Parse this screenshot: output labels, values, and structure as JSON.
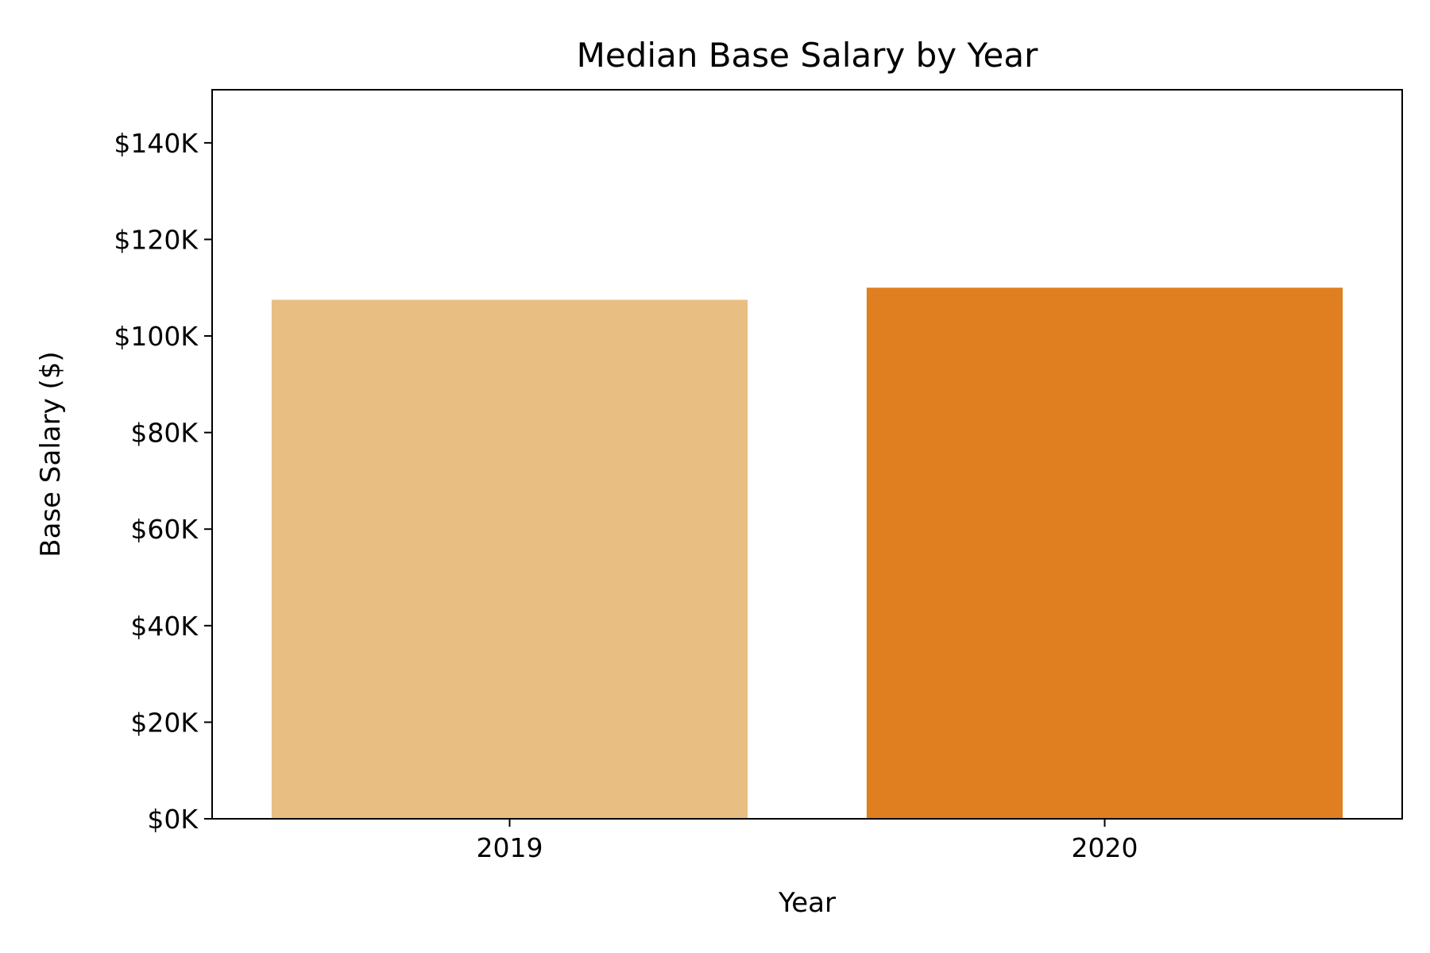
{
  "chart_data": {
    "type": "bar",
    "title": "Median Base Salary by Year",
    "xlabel": "Year",
    "ylabel": "Base Salary ($)",
    "categories": [
      "2019",
      "2020"
    ],
    "values": [
      107500,
      110000
    ],
    "bar_colors": [
      "#E9BE83",
      "#DF7F20"
    ],
    "ylim": [
      0,
      151000
    ],
    "yticks": [
      0,
      20000,
      40000,
      60000,
      80000,
      100000,
      120000,
      140000
    ],
    "ytick_labels": [
      "$0K",
      "$20K",
      "$40K",
      "$60K",
      "$80K",
      "$100K",
      "$120K",
      "$140K"
    ],
    "grid": false,
    "legend": "none"
  }
}
